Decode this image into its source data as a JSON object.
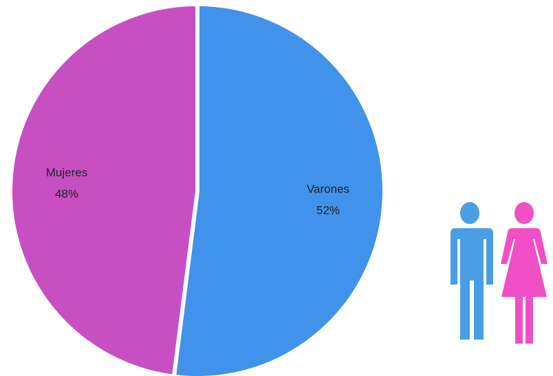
{
  "chart_data": {
    "type": "pie",
    "categories": [
      "Varones",
      "Mujeres"
    ],
    "values": [
      52,
      48
    ],
    "value_labels": [
      "52%",
      "48%"
    ],
    "colors": [
      "#4192ea",
      "#c84fc2"
    ]
  }
}
